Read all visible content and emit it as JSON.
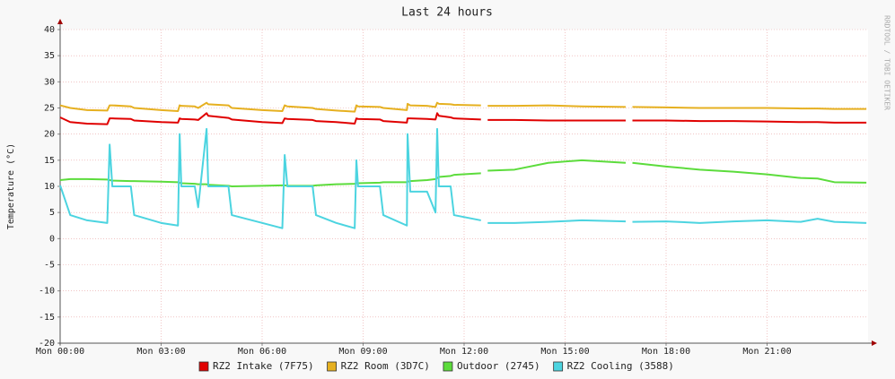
{
  "chart_data": {
    "type": "line",
    "title": "Last 24 hours",
    "y_label": "Temperature (°C)",
    "watermark": "RRDTOOL / TOBI OETIKER",
    "grid": true,
    "legend": "bottom",
    "xlim": [
      0,
      24
    ],
    "xticks": [
      {
        "value": 0,
        "label": "Mon 00:00"
      },
      {
        "value": 3,
        "label": "Mon 03:00"
      },
      {
        "value": 6,
        "label": "Mon 06:00"
      },
      {
        "value": 9,
        "label": "Mon 09:00"
      },
      {
        "value": 12,
        "label": "Mon 12:00"
      },
      {
        "value": 15,
        "label": "Mon 15:00"
      },
      {
        "value": 18,
        "label": "Mon 18:00"
      },
      {
        "value": 21,
        "label": "Mon 21:00"
      }
    ],
    "ylim": [
      -20,
      40
    ],
    "yticks": [
      -20,
      -15,
      -10,
      -5,
      0,
      5,
      10,
      15,
      20,
      25,
      30,
      35,
      40
    ],
    "x": [
      0,
      0.3,
      0.8,
      1.4,
      1.47,
      1.55,
      2.1,
      2.2,
      3.0,
      3.5,
      3.55,
      3.6,
      4.0,
      4.1,
      4.35,
      4.4,
      5.0,
      5.1,
      6.0,
      6.6,
      6.67,
      6.75,
      7.5,
      7.6,
      8.2,
      8.75,
      8.8,
      8.85,
      9.5,
      9.6,
      10.3,
      10.32,
      10.4,
      10.9,
      11.15,
      11.2,
      11.25,
      11.6,
      11.7,
      12.5,
      12.6,
      12.7,
      13.5,
      14.5,
      15.5,
      16.8,
      16.9,
      17.0,
      18,
      19,
      20,
      21,
      22,
      22.5,
      23,
      23.95
    ],
    "series": [
      {
        "name": "RZ2 Intake (7F75)",
        "color": "#e00000",
        "values": [
          23.2,
          22.3,
          22,
          21.9,
          23,
          23,
          22.9,
          22.6,
          22.3,
          22.2,
          23,
          22.9,
          22.8,
          22.7,
          24,
          23.5,
          23.1,
          22.8,
          22.3,
          22.1,
          23,
          22.9,
          22.7,
          22.5,
          22.3,
          22,
          23,
          22.9,
          22.8,
          22.5,
          22.2,
          23,
          23,
          22.9,
          22.8,
          24,
          23.5,
          23.2,
          23,
          22.8,
          null,
          22.7,
          22.7,
          22.6,
          22.6,
          22.6,
          null,
          22.6,
          22.6,
          22.5,
          22.5,
          22.4,
          22.3,
          22.3,
          22.2,
          22.2
        ]
      },
      {
        "name": "RZ2 Room (3D7C)",
        "color": "#e6b020",
        "values": [
          25.5,
          25,
          24.6,
          24.5,
          25.5,
          25.5,
          25.3,
          25,
          24.6,
          24.4,
          25.5,
          25.4,
          25.3,
          25,
          26,
          25.7,
          25.5,
          25,
          24.6,
          24.4,
          25.5,
          25.3,
          25,
          24.8,
          24.5,
          24.3,
          25.5,
          25.3,
          25.2,
          25,
          24.6,
          25.8,
          25.5,
          25.4,
          25.2,
          26,
          25.8,
          25.7,
          25.6,
          25.5,
          null,
          25.4,
          25.4,
          25.5,
          25.3,
          25.2,
          null,
          25.2,
          25.1,
          25,
          25,
          25,
          24.9,
          24.9,
          24.8,
          24.8
        ]
      },
      {
        "name": "Outdoor (2745)",
        "color": "#5cdc3c",
        "values": [
          11.2,
          11.4,
          11.4,
          11.3,
          11.2,
          11.1,
          11,
          11,
          10.9,
          10.8,
          10.7,
          10.6,
          10.5,
          10.4,
          10.4,
          10.3,
          10.1,
          10,
          10.1,
          10.2,
          10.2,
          10.1,
          10.1,
          10.2,
          10.4,
          10.5,
          10.6,
          10.6,
          10.7,
          10.8,
          10.8,
          10.9,
          11,
          11.2,
          11.4,
          11.6,
          11.8,
          12,
          12.2,
          12.5,
          null,
          13,
          13.2,
          14.5,
          15,
          14.5,
          null,
          14.5,
          13.8,
          13.2,
          12.8,
          12.3,
          11.6,
          11.5,
          10.8,
          10.7
        ]
      },
      {
        "name": "RZ2 Cooling (3588)",
        "color": "#4cd4e0",
        "values": [
          10.2,
          4.5,
          3.5,
          3,
          18,
          10,
          10,
          4.5,
          3,
          2.5,
          20,
          10,
          10,
          6,
          21,
          10,
          10,
          4.5,
          3,
          2,
          16,
          10,
          10,
          4.5,
          3,
          2,
          15,
          10,
          10,
          4.5,
          2.5,
          20,
          9,
          9,
          5,
          21,
          10,
          10,
          4.5,
          3.5,
          null,
          3,
          3,
          3.2,
          3.5,
          3.3,
          null,
          3.2,
          3.3,
          3,
          3.3,
          3.5,
          3.2,
          3.8,
          3.2,
          3
        ]
      }
    ]
  }
}
